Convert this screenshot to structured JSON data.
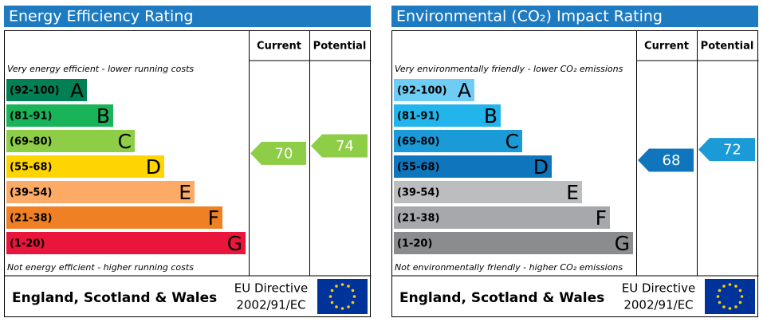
{
  "panels": [
    {
      "title": "Energy Efficiency Rating",
      "title_color": "#1e7bc2",
      "header": {
        "current": "Current",
        "potential": "Potential"
      },
      "top_note": "Very energy efficient - lower running costs",
      "bottom_note": "Not energy efficient - higher running costs",
      "bands": [
        {
          "range": "(92-100)",
          "letter": "A",
          "color": "#008054"
        },
        {
          "range": "(81-91)",
          "letter": "B",
          "color": "#19b459"
        },
        {
          "range": "(69-80)",
          "letter": "C",
          "color": "#8dce46"
        },
        {
          "range": "(55-68)",
          "letter": "D",
          "color": "#ffd500"
        },
        {
          "range": "(39-54)",
          "letter": "E",
          "color": "#fcaa65"
        },
        {
          "range": "(21-38)",
          "letter": "F",
          "color": "#ef8023"
        },
        {
          "range": "(1-20)",
          "letter": "G",
          "color": "#e9153b"
        }
      ],
      "current": 70,
      "potential": 74,
      "footer": {
        "region": "England, Scotland & Wales",
        "directive": "EU Directive",
        "code": "2002/91/EC"
      }
    },
    {
      "title": "Environmental (CO₂) Impact Rating",
      "title_color": "#1e7bc2",
      "header": {
        "current": "Current",
        "potential": "Potential"
      },
      "top_note": "Very environmentally friendly - lower CO₂ emissions",
      "bottom_note": "Not environmentally friendly - higher CO₂ emissions",
      "bands": [
        {
          "range": "(92-100)",
          "letter": "A",
          "color": "#6fcdf5"
        },
        {
          "range": "(81-91)",
          "letter": "B",
          "color": "#22b5eb"
        },
        {
          "range": "(69-80)",
          "letter": "C",
          "color": "#1a9ad7"
        },
        {
          "range": "(55-68)",
          "letter": "D",
          "color": "#0f75bd"
        },
        {
          "range": "(39-54)",
          "letter": "E",
          "color": "#bbbdbf"
        },
        {
          "range": "(21-38)",
          "letter": "F",
          "color": "#a6a8ab"
        },
        {
          "range": "(1-20)",
          "letter": "G",
          "color": "#8a8c8e"
        }
      ],
      "current": 68,
      "potential": 72,
      "footer": {
        "region": "England, Scotland & Wales",
        "directive": "EU Directive",
        "code": "2002/91/EC"
      }
    }
  ]
}
